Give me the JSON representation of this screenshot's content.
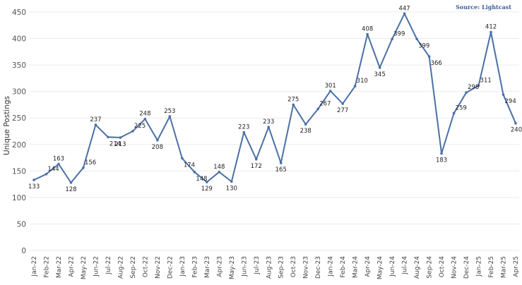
{
  "chart_data": {
    "type": "line",
    "ylabel": "Unique Postings",
    "xlabel": "",
    "source": "Source: Lightcast",
    "ylim": [
      0,
      450
    ],
    "yticks": [
      0,
      50,
      100,
      150,
      200,
      250,
      300,
      350,
      400,
      450
    ],
    "grid": true,
    "line_color": "#4a70a6",
    "categories": [
      "Jan-22",
      "Feb-22",
      "Mar-22",
      "Apr-22",
      "May-22",
      "Jun-22",
      "Jul-22",
      "Aug-22",
      "Sep-22",
      "Oct-22",
      "Nov-22",
      "Dec-22",
      "Jan-23",
      "Feb-23",
      "Mar-23",
      "Apr-23",
      "May-23",
      "Jun-23",
      "Jul-23",
      "Aug-23",
      "Sep-23",
      "Oct-23",
      "Nov-23",
      "Dec-23",
      "Jan-24",
      "Feb-24",
      "Mar-24",
      "Apr-24",
      "May-24",
      "Jun-24",
      "Jul-24",
      "Aug-24",
      "Sep-24",
      "Oct-24",
      "Nov-24",
      "Dec-24",
      "Jan-25",
      "Feb-25",
      "Mar-25",
      "Apr-25"
    ],
    "series": [
      {
        "values": [
          133,
          144,
          163,
          128,
          156,
          237,
          214,
          213,
          225,
          248,
          208,
          253,
          174,
          148,
          129,
          148,
          130,
          223,
          172,
          233,
          165,
          275,
          238,
          267,
          301,
          277,
          310,
          408,
          345,
          399,
          447,
          399,
          366,
          183,
          259,
          298,
          311,
          412,
          294,
          240
        ]
      }
    ]
  }
}
